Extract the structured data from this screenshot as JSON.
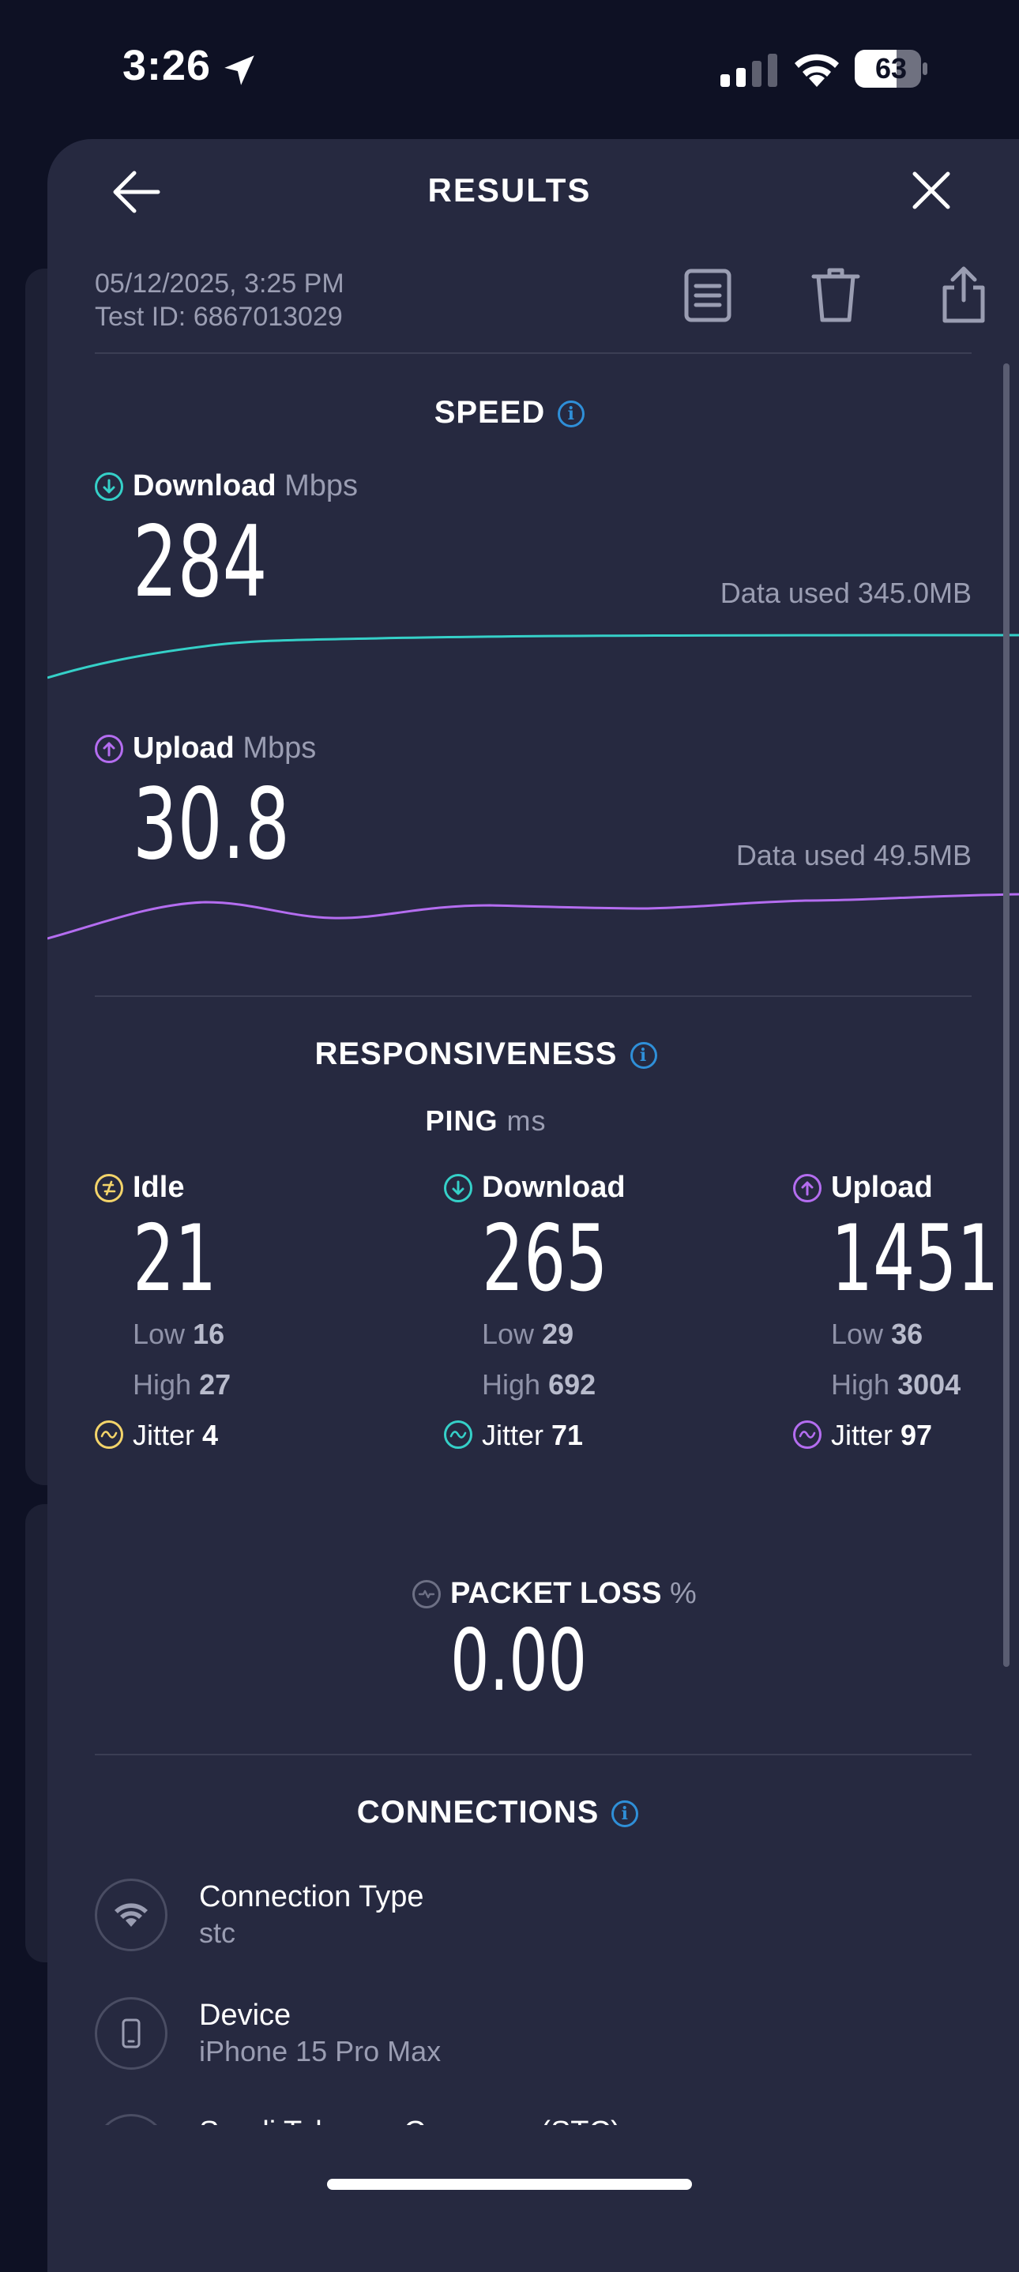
{
  "status_bar": {
    "time": "3:26",
    "battery": "63"
  },
  "header": {
    "title": "RESULTS",
    "back_icon": "arrow-left-icon",
    "close_icon": "close-icon"
  },
  "meta": {
    "datetime": "05/12/2025, 3:25 PM",
    "test_id": "Test ID: 6867013029"
  },
  "actions": [
    "document-icon",
    "trash-icon",
    "share-icon"
  ],
  "speed": {
    "title": "SPEED",
    "download": {
      "label": "Download",
      "unit": "Mbps",
      "value": "284",
      "data_used": "Data used 345.0MB",
      "color": "#35d0c8"
    },
    "upload": {
      "label": "Upload",
      "unit": "Mbps",
      "value": "30.8",
      "data_used": "Data used 49.5MB",
      "color": "#b46df0"
    }
  },
  "responsiveness": {
    "title": "RESPONSIVENESS",
    "ping_label": "PING",
    "ping_unit": "ms",
    "idle": {
      "label": "Idle",
      "value": "21",
      "low_label": "Low",
      "low": "16",
      "high_label": "High",
      "high": "27",
      "jitter_label": "Jitter",
      "jitter": "4",
      "color": "#f3d46a"
    },
    "download": {
      "label": "Download",
      "value": "265",
      "low_label": "Low",
      "low": "29",
      "high_label": "High",
      "high": "692",
      "jitter_label": "Jitter",
      "jitter": "71",
      "color": "#35d0c8"
    },
    "upload": {
      "label": "Upload",
      "value": "1451",
      "low_label": "Low",
      "low": "36",
      "high_label": "High",
      "high": "3004",
      "jitter_label": "Jitter",
      "jitter": "97",
      "color": "#b46df0"
    }
  },
  "packet_loss": {
    "label": "PACKET LOSS",
    "unit": "%",
    "value": "0.00"
  },
  "connections": {
    "title": "CONNECTIONS",
    "items": [
      {
        "label": "Connection Type",
        "value": "stc",
        "icon": "wifi-icon"
      },
      {
        "label": "Device",
        "value": "iPhone 15 Pro Max",
        "icon": "phone-icon"
      },
      {
        "label": "Saudi Telecom Company (STC)",
        "icon": "server-icon"
      }
    ]
  }
}
